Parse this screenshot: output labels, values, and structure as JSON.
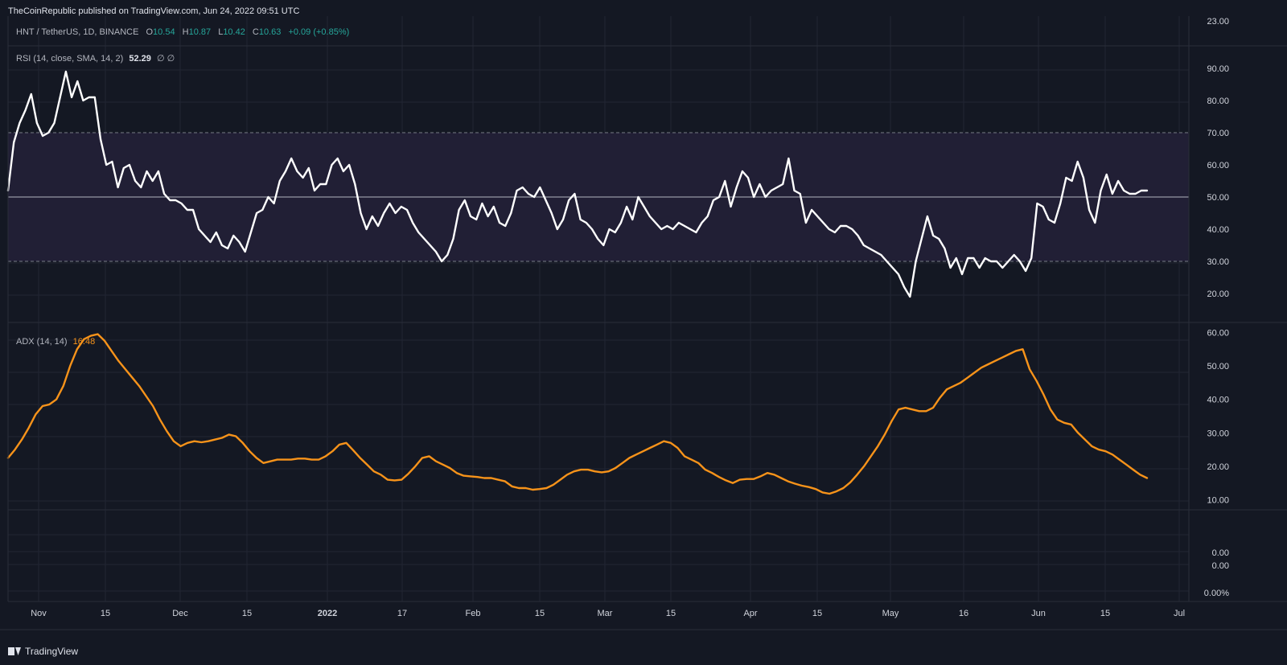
{
  "header": {
    "published": "TheCoinRepublic published on TradingView.com, Jun 24, 2022 09:51 UTC",
    "symbol": "HNT / TetherUS, 1D, BINANCE",
    "open_label": "O",
    "open": "10.54",
    "high_label": "H",
    "high": "10.87",
    "low_label": "L",
    "low": "10.42",
    "close_label": "C",
    "close": "10.63",
    "change": "+0.09 (+0.85%)"
  },
  "rsi_legend": {
    "label": "RSI (14, close, SMA, 14, 2)",
    "value": "52.29",
    "extra": "∅ ∅"
  },
  "adx_legend": {
    "label": "ADX (14, 14)",
    "value": "16.48"
  },
  "footer": {
    "brand": "TradingView"
  },
  "colors": {
    "background": "#141823",
    "rsi_line": "#ffffff",
    "rsi_band": "#211f35",
    "adx_line": "#f7931a",
    "grid": "#222633"
  },
  "chart_data": [
    {
      "type": "line",
      "title": "RSI (14, close, SMA, 14, 2)",
      "ylim": [
        11,
        97
      ],
      "y_ticks": [
        "90.00",
        "80.00",
        "70.00",
        "60.00",
        "50.00",
        "40.00",
        "30.00",
        "20.00"
      ],
      "bands": {
        "upper": 70,
        "middle": 50,
        "lower": 30
      },
      "series": [
        {
          "values": [
            52,
            67,
            73,
            77,
            82,
            73,
            69,
            70,
            73,
            81,
            89,
            81,
            86,
            80,
            81,
            81,
            68,
            60,
            61,
            53,
            59,
            60,
            55,
            53,
            58,
            55,
            58,
            51,
            49,
            49,
            48,
            46,
            46,
            40,
            38,
            36,
            39,
            35,
            34,
            38,
            36,
            33,
            39,
            45,
            46,
            50,
            48,
            55,
            58,
            62,
            58,
            56,
            59,
            52,
            54,
            54,
            60,
            62,
            58,
            60,
            54,
            45,
            40,
            44,
            41,
            45,
            48,
            45,
            47,
            46,
            42,
            39,
            37,
            35,
            33,
            30,
            32,
            37,
            46,
            49,
            44,
            43,
            48,
            44,
            47,
            42,
            41,
            45,
            52,
            53,
            51,
            50,
            53,
            49,
            45,
            40,
            43,
            49,
            51,
            43,
            42,
            40,
            37,
            35,
            40,
            39,
            42,
            47,
            43,
            50,
            47,
            44,
            42,
            40,
            41,
            40,
            42,
            41,
            40,
            39,
            42,
            44,
            49,
            50,
            55,
            47,
            53,
            58,
            56,
            50,
            54,
            50,
            52,
            53,
            54,
            62,
            52,
            51,
            42,
            46,
            44,
            42,
            40,
            39,
            41,
            41,
            40,
            38,
            35,
            34,
            33,
            32,
            30,
            28,
            26,
            22,
            19,
            30,
            37,
            44,
            38,
            37,
            34,
            28,
            31,
            26,
            31,
            31,
            28,
            31,
            30,
            30,
            28,
            30,
            32,
            30,
            27,
            31,
            48,
            47,
            43,
            42,
            48,
            56,
            55,
            61,
            56,
            46,
            42,
            52,
            57,
            51,
            55,
            52,
            51,
            51,
            52,
            52
          ]
        }
      ]
    },
    {
      "type": "line",
      "title": "ADX (14, 14)",
      "ylim": [
        7,
        63
      ],
      "y_ticks": [
        "60.00",
        "50.00",
        "40.00",
        "30.00",
        "20.00",
        "10.00"
      ],
      "series": [
        {
          "values": [
            22.5,
            25,
            28,
            31.5,
            35.5,
            38,
            38.5,
            40,
            44,
            50,
            55,
            58,
            59,
            59.5,
            57.5,
            54.5,
            51.5,
            49,
            46.5,
            44,
            41,
            38,
            34,
            30.5,
            27.5,
            26,
            27,
            27.5,
            27.2,
            27.5,
            28,
            28.5,
            29.5,
            29,
            27,
            24.5,
            22.5,
            21,
            21.5,
            22,
            22,
            22,
            22.3,
            22.3,
            22,
            22,
            23,
            24.5,
            26.5,
            27,
            24.8,
            22.5,
            20.5,
            18.5,
            17.5,
            16,
            15.8,
            16,
            17.8,
            20,
            22.5,
            23,
            21.5,
            20.5,
            19.5,
            18,
            17.2,
            17,
            16.8,
            16.5,
            16.5,
            16,
            15.5,
            14,
            13.5,
            13.5,
            13,
            13.2,
            13.5,
            14.5,
            16,
            17.5,
            18.5,
            19,
            19,
            18.5,
            18.2,
            18.5,
            19.5,
            21,
            22.5,
            23.5,
            24.5,
            25.5,
            26.5,
            27.5,
            27,
            25.5,
            23,
            22,
            21,
            19,
            18,
            16.8,
            15.8,
            15,
            16,
            16.2,
            16.2,
            17,
            18,
            17.5,
            16.5,
            15.5,
            14.8,
            14.2,
            13.8,
            13.2,
            12.2,
            11.8,
            12.5,
            13.5,
            15.2,
            17.5,
            20,
            23,
            26,
            29.5,
            33.5,
            37,
            37.5,
            37,
            36.5,
            36.5,
            37.5,
            40.5,
            43,
            44,
            45,
            46.5,
            48,
            49.5,
            50.5,
            51.5,
            52.5,
            53.5,
            54.5,
            55,
            49,
            45.5,
            41.5,
            37,
            34,
            33,
            32.5,
            30,
            28,
            26,
            25,
            24.5,
            23.5,
            22,
            20.5,
            19,
            17.5,
            16.5
          ]
        }
      ]
    }
  ],
  "x_axis": {
    "ticks": [
      "Nov",
      "15",
      "Dec",
      "15",
      "2022",
      "17",
      "Feb",
      "15",
      "Mar",
      "15",
      "Apr",
      "15",
      "May",
      "16",
      "Jun",
      "15",
      "Jul"
    ]
  },
  "price_axis": {
    "top_label": "23.00",
    "lower_labels": [
      "0.00",
      "0.00",
      "0.00%"
    ]
  }
}
